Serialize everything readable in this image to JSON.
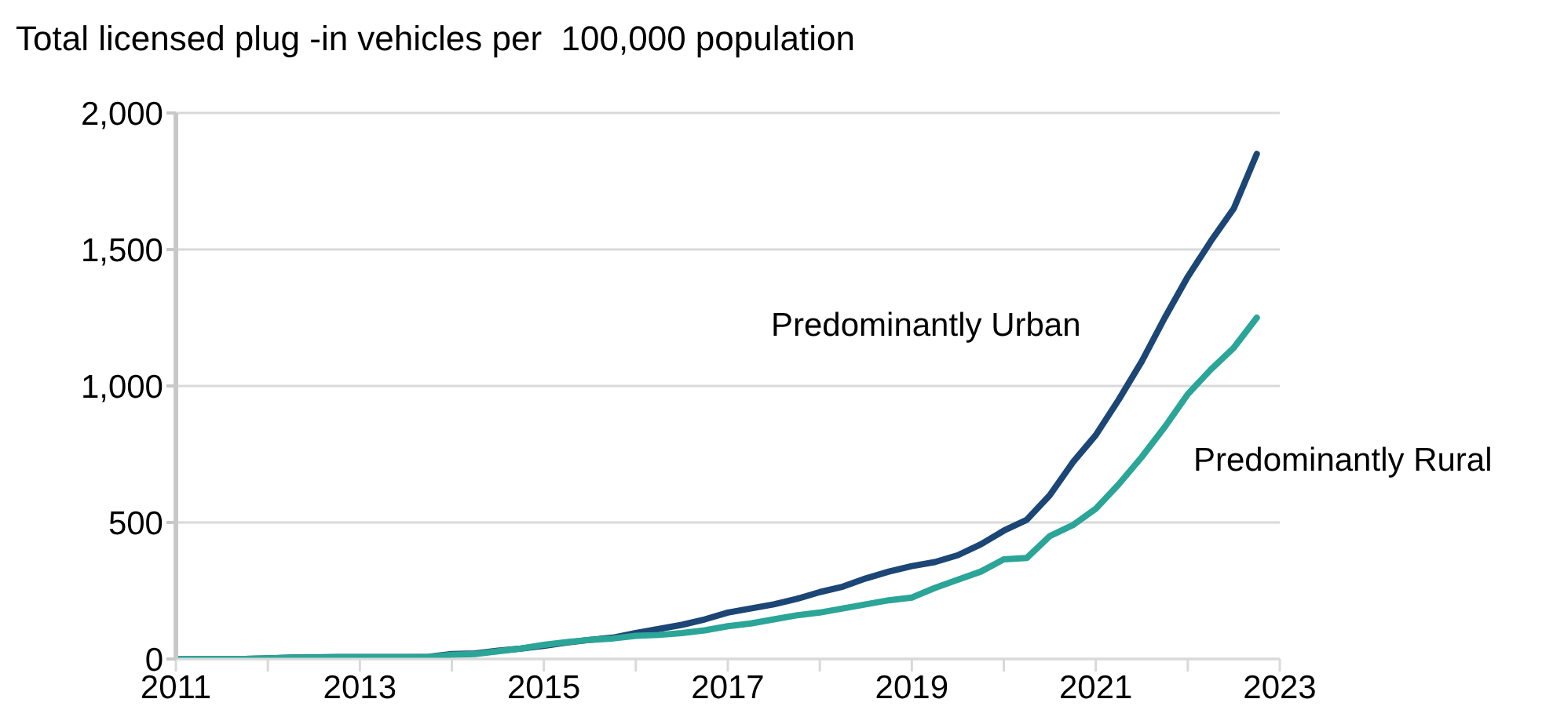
{
  "chart_data": {
    "type": "line",
    "title": "Total licensed plug -in vehicles per  100,000 population",
    "x": [
      2011,
      2011.25,
      2011.5,
      2011.75,
      2012,
      2012.25,
      2012.5,
      2012.75,
      2013,
      2013.25,
      2013.5,
      2013.75,
      2014,
      2014.25,
      2014.5,
      2014.75,
      2015,
      2015.25,
      2015.5,
      2015.75,
      2016,
      2016.25,
      2016.5,
      2016.75,
      2017,
      2017.25,
      2017.5,
      2017.75,
      2018,
      2018.25,
      2018.5,
      2018.75,
      2019,
      2019.25,
      2019.5,
      2019.75,
      2020,
      2020.25,
      2020.5,
      2020.75,
      2021,
      2021.25,
      2021.5,
      2021.75,
      2022,
      2022.25,
      2022.5,
      2022.75
    ],
    "series": [
      {
        "name": "Predominantly Urban",
        "color": "#1b4675",
        "values": [
          0,
          0,
          0,
          0,
          2,
          5,
          6,
          7,
          7,
          7,
          7,
          8,
          18,
          20,
          30,
          38,
          48,
          60,
          70,
          78,
          95,
          110,
          125,
          145,
          170,
          185,
          200,
          220,
          245,
          265,
          295,
          320,
          340,
          355,
          380,
          420,
          470,
          510,
          600,
          720,
          820,
          950,
          1090,
          1250,
          1400,
          1530,
          1650,
          1850
        ]
      },
      {
        "name": "Predominantly Rural",
        "color": "#2ba597",
        "values": [
          0,
          0,
          0,
          0,
          2,
          4,
          5,
          6,
          6,
          6,
          6,
          7,
          15,
          18,
          28,
          38,
          52,
          62,
          70,
          75,
          85,
          88,
          95,
          105,
          120,
          130,
          145,
          160,
          170,
          185,
          200,
          215,
          225,
          260,
          290,
          320,
          365,
          370,
          450,
          490,
          550,
          640,
          740,
          850,
          970,
          1060,
          1140,
          1250
        ]
      }
    ],
    "xlim": [
      2011,
      2023
    ],
    "xticks": [
      2011,
      {
        "value": 2012,
        "label": null
      },
      2013,
      {
        "value": 2014,
        "label": null
      },
      2015,
      {
        "value": 2016,
        "label": null
      },
      2017,
      {
        "value": 2018,
        "label": null
      },
      2019,
      {
        "value": 2020,
        "label": null
      },
      2021,
      {
        "value": 2022,
        "label": null
      },
      2023
    ],
    "ylim": [
      0,
      2000
    ],
    "yticks": [
      0,
      500,
      {
        "value": 1000,
        "label": "1,000"
      },
      {
        "value": 1500,
        "label": "1,500"
      },
      {
        "value": 2000,
        "label": "2,000"
      }
    ],
    "grid": "y"
  }
}
